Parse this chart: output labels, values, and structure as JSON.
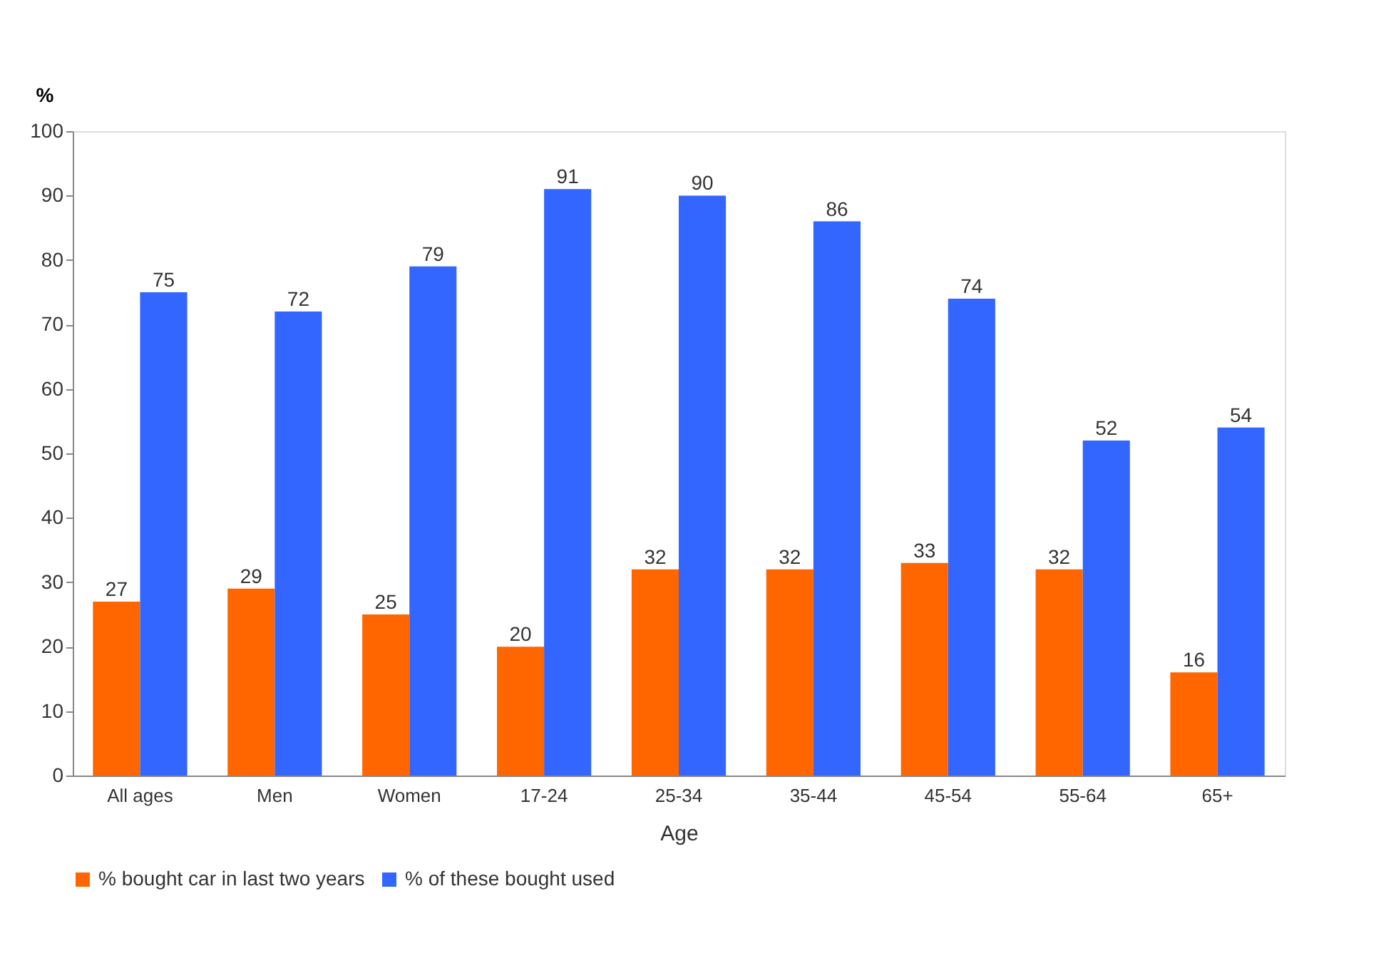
{
  "chart_data": {
    "type": "bar",
    "xlabel": "Age",
    "ylabel": "%",
    "categories": [
      "All ages",
      "Men",
      "Women",
      "17-24",
      "25-34",
      "35-44",
      "45-54",
      "55-64",
      "65+"
    ],
    "series": [
      {
        "name": "% bought car in last two years",
        "color": "#ff6600",
        "values": [
          27,
          29,
          25,
          20,
          32,
          32,
          33,
          32,
          16
        ]
      },
      {
        "name": "% of these bought used",
        "color": "#3366ff",
        "values": [
          75,
          72,
          79,
          91,
          90,
          86,
          74,
          52,
          54
        ]
      }
    ],
    "ylim": [
      0,
      100
    ],
    "yticks": [
      0,
      10,
      20,
      30,
      40,
      50,
      60,
      70,
      80,
      90,
      100
    ],
    "data_labels": true,
    "grid": false,
    "legend": "bottom"
  }
}
